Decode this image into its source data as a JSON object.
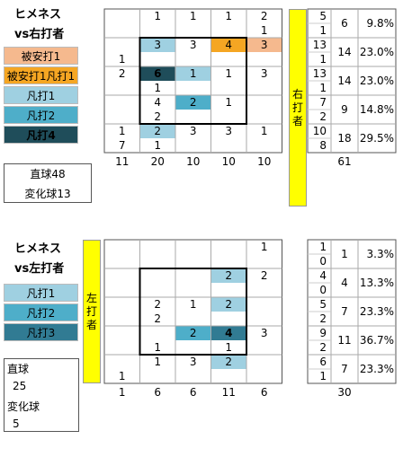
{
  "colors": {
    "hit": "#f5b98e",
    "hit_extra": "#f5a623",
    "out1": "#9fd0e1",
    "out2": "#4eaec9",
    "out3": "#317b93",
    "out4": "#1f4d5a",
    "side_bar": "#ffff00",
    "zone": "#000000",
    "grid": "#aaaaaa"
  },
  "chart_data": [
    {
      "type": "heatmap",
      "title": "ヒメネス",
      "subtitle": "vs右打者",
      "side_label": "右打者",
      "legend": [
        {
          "label": "被安打1",
          "color": "#f5b98e",
          "bold": false
        },
        {
          "label": "被安打1凡打1",
          "color": "#f5a623",
          "bold": false
        },
        {
          "label": "凡打1",
          "color": "#9fd0e1",
          "bold": false
        },
        {
          "label": "凡打2",
          "color": "#4eaec9",
          "bold": false
        },
        {
          "label": "凡打4",
          "color": "#1f4d5a",
          "bold": true
        }
      ],
      "pitch_types": [
        "直球48",
        "変化球13"
      ],
      "grid": [
        [
          {
            "v": "",
            "c": ""
          },
          {
            "v": "1",
            "c": ""
          },
          {
            "v": "1",
            "c": ""
          },
          {
            "v": "1",
            "c": ""
          },
          {
            "v": "2",
            "c": ""
          }
        ],
        [
          {
            "v": "",
            "c": ""
          },
          {
            "v": "",
            "c": ""
          },
          {
            "v": "",
            "c": ""
          },
          {
            "v": "",
            "c": ""
          },
          {
            "v": "1",
            "c": ""
          }
        ],
        [
          {
            "v": "",
            "c": ""
          },
          {
            "v": "3",
            "c": "out1"
          },
          {
            "v": "3",
            "c": ""
          },
          {
            "v": "4",
            "c": "hit_extra"
          },
          {
            "v": "3",
            "c": "hit"
          }
        ],
        [
          {
            "v": "1",
            "c": ""
          },
          {
            "v": "",
            "c": ""
          },
          {
            "v": "",
            "c": ""
          },
          {
            "v": "",
            "c": ""
          },
          {
            "v": "",
            "c": ""
          }
        ],
        [
          {
            "v": "2",
            "c": ""
          },
          {
            "v": "6",
            "c": "out4",
            "b": true
          },
          {
            "v": "1",
            "c": "out1"
          },
          {
            "v": "1",
            "c": ""
          },
          {
            "v": "3",
            "c": ""
          }
        ],
        [
          {
            "v": "",
            "c": ""
          },
          {
            "v": "1",
            "c": ""
          },
          {
            "v": "",
            "c": ""
          },
          {
            "v": "",
            "c": ""
          },
          {
            "v": "",
            "c": ""
          }
        ],
        [
          {
            "v": "",
            "c": ""
          },
          {
            "v": "4",
            "c": ""
          },
          {
            "v": "2",
            "c": "out2"
          },
          {
            "v": "1",
            "c": ""
          },
          {
            "v": "",
            "c": ""
          }
        ],
        [
          {
            "v": "",
            "c": ""
          },
          {
            "v": "2",
            "c": ""
          },
          {
            "v": "",
            "c": ""
          },
          {
            "v": "",
            "c": ""
          },
          {
            "v": "",
            "c": ""
          }
        ],
        [
          {
            "v": "1",
            "c": ""
          },
          {
            "v": "2",
            "c": "out1"
          },
          {
            "v": "3",
            "c": ""
          },
          {
            "v": "3",
            "c": ""
          },
          {
            "v": "1",
            "c": ""
          }
        ],
        [
          {
            "v": "7",
            "c": ""
          },
          {
            "v": "1",
            "c": ""
          },
          {
            "v": "",
            "c": ""
          },
          {
            "v": "",
            "c": ""
          },
          {
            "v": "",
            "c": ""
          }
        ]
      ],
      "col_totals": [
        "11",
        "20",
        "10",
        "10",
        "10"
      ],
      "right_pairs": [
        [
          "5",
          "1"
        ],
        [
          "13",
          "1"
        ],
        [
          "13",
          "1"
        ],
        [
          "7",
          "2"
        ],
        [
          "10",
          "8"
        ]
      ],
      "row_totals": [
        "6",
        "14",
        "14",
        "9",
        "18"
      ],
      "row_pcts": [
        "9.8%",
        "23.0%",
        "23.0%",
        "14.8%",
        "29.5%"
      ],
      "grand_total": "61"
    },
    {
      "type": "heatmap",
      "title": "ヒメネス",
      "subtitle": "vs左打者",
      "side_label": "左打者",
      "legend": [
        {
          "label": "凡打1",
          "color": "#9fd0e1",
          "bold": false
        },
        {
          "label": "凡打2",
          "color": "#4eaec9",
          "bold": false
        },
        {
          "label": "凡打3",
          "color": "#317b93",
          "bold": false
        }
      ],
      "pitch_types": [
        {
          "name": "直球",
          "count": "25"
        },
        {
          "name": "変化球",
          "count": "5"
        }
      ],
      "grid": [
        [
          {
            "v": "",
            "c": ""
          },
          {
            "v": "",
            "c": ""
          },
          {
            "v": "",
            "c": ""
          },
          {
            "v": "",
            "c": ""
          },
          {
            "v": "1",
            "c": ""
          }
        ],
        [
          {
            "v": "",
            "c": ""
          },
          {
            "v": "",
            "c": ""
          },
          {
            "v": "",
            "c": ""
          },
          {
            "v": "",
            "c": ""
          },
          {
            "v": "",
            "c": ""
          }
        ],
        [
          {
            "v": "",
            "c": ""
          },
          {
            "v": "",
            "c": ""
          },
          {
            "v": "",
            "c": ""
          },
          {
            "v": "2",
            "c": "out1"
          },
          {
            "v": "2",
            "c": ""
          }
        ],
        [
          {
            "v": "",
            "c": ""
          },
          {
            "v": "",
            "c": ""
          },
          {
            "v": "",
            "c": ""
          },
          {
            "v": "",
            "c": ""
          },
          {
            "v": "",
            "c": ""
          }
        ],
        [
          {
            "v": "",
            "c": ""
          },
          {
            "v": "2",
            "c": ""
          },
          {
            "v": "1",
            "c": ""
          },
          {
            "v": "2",
            "c": "out1"
          },
          {
            "v": "",
            "c": ""
          }
        ],
        [
          {
            "v": "",
            "c": ""
          },
          {
            "v": "2",
            "c": ""
          },
          {
            "v": "",
            "c": ""
          },
          {
            "v": "",
            "c": ""
          },
          {
            "v": "",
            "c": ""
          }
        ],
        [
          {
            "v": "",
            "c": ""
          },
          {
            "v": "",
            "c": ""
          },
          {
            "v": "2",
            "c": "out2"
          },
          {
            "v": "4",
            "c": "out3",
            "b": true
          },
          {
            "v": "3",
            "c": ""
          }
        ],
        [
          {
            "v": "",
            "c": ""
          },
          {
            "v": "1",
            "c": ""
          },
          {
            "v": "",
            "c": ""
          },
          {
            "v": "1",
            "c": ""
          },
          {
            "v": "",
            "c": ""
          }
        ],
        [
          {
            "v": "",
            "c": ""
          },
          {
            "v": "1",
            "c": ""
          },
          {
            "v": "3",
            "c": ""
          },
          {
            "v": "2",
            "c": "out1"
          },
          {
            "v": "",
            "c": ""
          }
        ],
        [
          {
            "v": "1",
            "c": ""
          },
          {
            "v": "",
            "c": ""
          },
          {
            "v": "",
            "c": ""
          },
          {
            "v": "",
            "c": ""
          },
          {
            "v": "",
            "c": ""
          }
        ]
      ],
      "col_totals": [
        "1",
        "6",
        "6",
        "11",
        "6"
      ],
      "right_pairs": [
        [
          "1",
          "0"
        ],
        [
          "4",
          "0"
        ],
        [
          "5",
          "2"
        ],
        [
          "9",
          "2"
        ],
        [
          "6",
          "1"
        ]
      ],
      "row_totals": [
        "1",
        "4",
        "7",
        "11",
        "7"
      ],
      "row_pcts": [
        "3.3%",
        "13.3%",
        "23.3%",
        "36.7%",
        "23.3%"
      ],
      "grand_total": "30"
    }
  ]
}
